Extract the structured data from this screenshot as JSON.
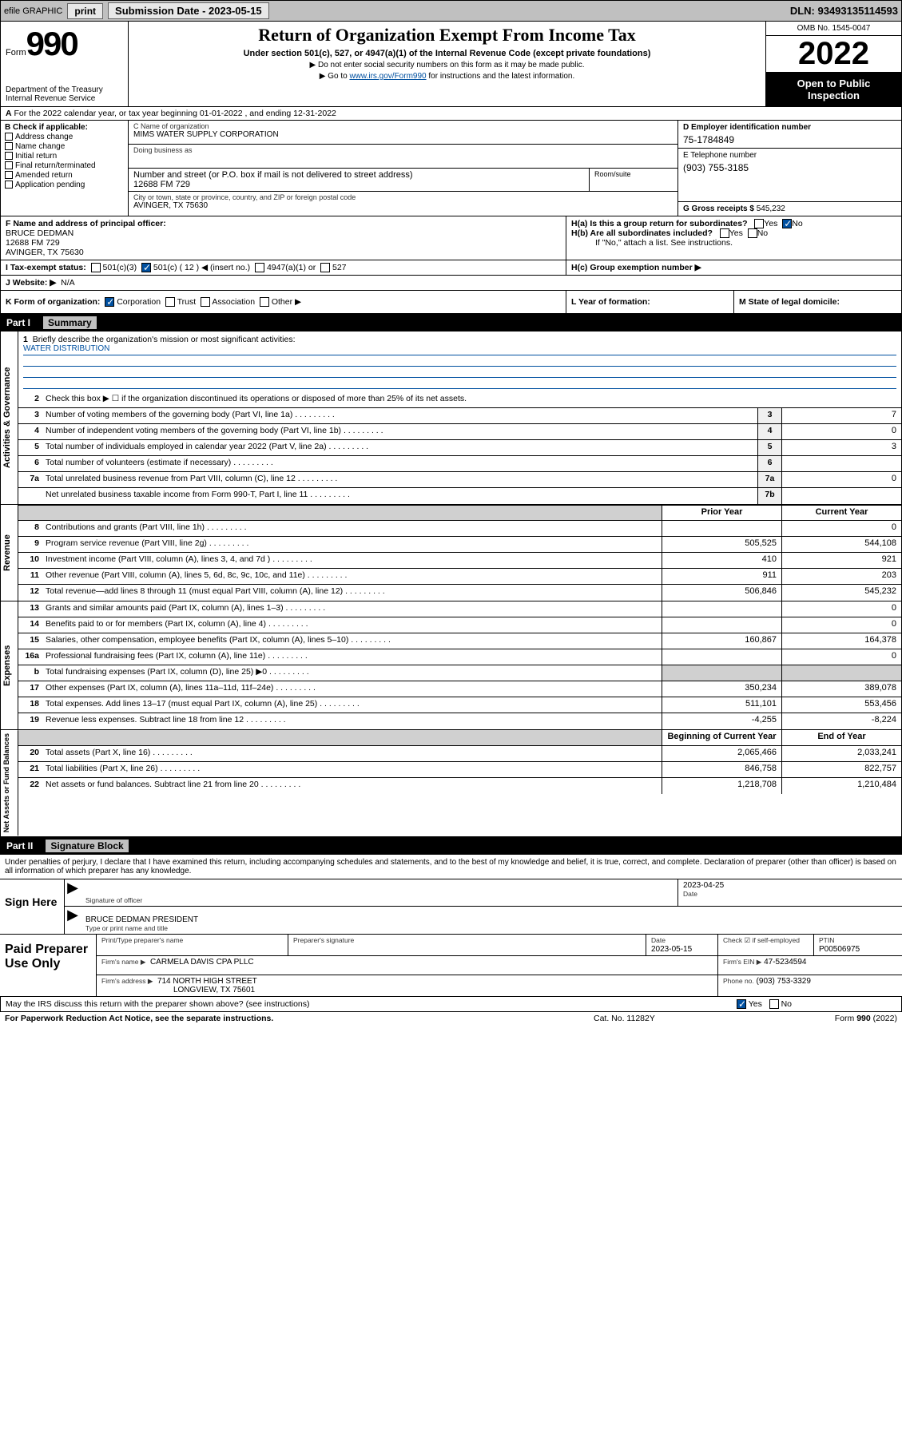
{
  "topbar": {
    "efile": "efile GRAPHIC",
    "print": "print",
    "sub_label": "Submission Date - 2023-05-15",
    "dln": "DLN: 93493135114593"
  },
  "header": {
    "form_word": "Form",
    "form_num": "990",
    "dept": "Department of the Treasury",
    "irs": "Internal Revenue Service",
    "title": "Return of Organization Exempt From Income Tax",
    "sub": "Under section 501(c), 527, or 4947(a)(1) of the Internal Revenue Code (except private foundations)",
    "note1": "▶ Do not enter social security numbers on this form as it may be made public.",
    "note2_a": "▶ Go to ",
    "note2_link": "www.irs.gov/Form990",
    "note2_b": " for instructions and the latest information.",
    "omb": "OMB No. 1545-0047",
    "year": "2022",
    "open1": "Open to Public",
    "open2": "Inspection"
  },
  "line_a": "For the 2022 calendar year, or tax year beginning 01-01-2022   , and ending 12-31-2022",
  "col_b": {
    "hdr": "B Check if applicable:",
    "o1": "Address change",
    "o2": "Name change",
    "o3": "Initial return",
    "o4": "Final return/terminated",
    "o5": "Amended return",
    "o6": "Application pending"
  },
  "col_c": {
    "name_lbl": "C Name of organization",
    "name": "MIMS WATER SUPPLY CORPORATION",
    "dba_lbl": "Doing business as",
    "addr_lbl": "Number and street (or P.O. box if mail is not delivered to street address)",
    "room_lbl": "Room/suite",
    "addr": "12688 FM 729",
    "city_lbl": "City or town, state or province, country, and ZIP or foreign postal code",
    "city": "AVINGER, TX  75630"
  },
  "col_d": {
    "ein_lbl": "D Employer identification number",
    "ein": "75-1784849",
    "phone_lbl": "E Telephone number",
    "phone": "(903) 755-3185",
    "gross_lbl": "G Gross receipts $",
    "gross": "545,232"
  },
  "row_f": {
    "lbl": "F  Name and address of principal officer:",
    "name": "BRUCE DEDMAN",
    "addr1": "12688 FM 729",
    "addr2": "AVINGER, TX  75630"
  },
  "row_h": {
    "ha": "H(a)  Is this a group return for subordinates?",
    "hb": "H(b)  Are all subordinates included?",
    "hb_note": "If \"No,\" attach a list. See instructions.",
    "hc": "H(c)  Group exemption number ▶",
    "yes": "Yes",
    "no": "No"
  },
  "row_i": {
    "lbl": "I   Tax-exempt status:",
    "o1": "501(c)(3)",
    "o2": "501(c) ( 12 ) ◀ (insert no.)",
    "o3": "4947(a)(1) or",
    "o4": "527"
  },
  "row_j": {
    "lbl": "J   Website: ▶",
    "val": "N/A"
  },
  "row_k": {
    "lbl": "K Form of organization:",
    "o1": "Corporation",
    "o2": "Trust",
    "o3": "Association",
    "o4": "Other ▶"
  },
  "row_l": "L Year of formation:",
  "row_m": "M State of legal domicile:",
  "part1": {
    "num": "Part I",
    "title": "Summary",
    "q1": "Briefly describe the organization's mission or most significant activities:",
    "mission": "WATER DISTRIBUTION",
    "q2": "Check this box ▶ ☐  if the organization discontinued its operations or disposed of more than 25% of its net assets.",
    "labels": {
      "gov": "Activities & Governance",
      "rev": "Revenue",
      "exp": "Expenses",
      "net": "Net Assets or Fund Balances"
    },
    "hdr_prior": "Prior Year",
    "hdr_curr": "Current Year",
    "hdr_begin": "Beginning of Current Year",
    "hdr_end": "End of Year",
    "rows_gov": [
      {
        "n": "3",
        "t": "Number of voting members of the governing body (Part VI, line 1a)",
        "c1": "3",
        "v": "7"
      },
      {
        "n": "4",
        "t": "Number of independent voting members of the governing body (Part VI, line 1b)",
        "c1": "4",
        "v": "0"
      },
      {
        "n": "5",
        "t": "Total number of individuals employed in calendar year 2022 (Part V, line 2a)",
        "c1": "5",
        "v": "3"
      },
      {
        "n": "6",
        "t": "Total number of volunteers (estimate if necessary)",
        "c1": "6",
        "v": ""
      },
      {
        "n": "7a",
        "t": "Total unrelated business revenue from Part VIII, column (C), line 12",
        "c1": "7a",
        "v": "0"
      },
      {
        "n": "",
        "t": "Net unrelated business taxable income from Form 990-T, Part I, line 11",
        "c1": "7b",
        "v": ""
      }
    ],
    "rows_rev": [
      {
        "n": "8",
        "t": "Contributions and grants (Part VIII, line 1h)",
        "p": "",
        "c": "0"
      },
      {
        "n": "9",
        "t": "Program service revenue (Part VIII, line 2g)",
        "p": "505,525",
        "c": "544,108"
      },
      {
        "n": "10",
        "t": "Investment income (Part VIII, column (A), lines 3, 4, and 7d )",
        "p": "410",
        "c": "921"
      },
      {
        "n": "11",
        "t": "Other revenue (Part VIII, column (A), lines 5, 6d, 8c, 9c, 10c, and 11e)",
        "p": "911",
        "c": "203"
      },
      {
        "n": "12",
        "t": "Total revenue—add lines 8 through 11 (must equal Part VIII, column (A), line 12)",
        "p": "506,846",
        "c": "545,232"
      }
    ],
    "rows_exp": [
      {
        "n": "13",
        "t": "Grants and similar amounts paid (Part IX, column (A), lines 1–3)",
        "p": "",
        "c": "0"
      },
      {
        "n": "14",
        "t": "Benefits paid to or for members (Part IX, column (A), line 4)",
        "p": "",
        "c": "0"
      },
      {
        "n": "15",
        "t": "Salaries, other compensation, employee benefits (Part IX, column (A), lines 5–10)",
        "p": "160,867",
        "c": "164,378"
      },
      {
        "n": "16a",
        "t": "Professional fundraising fees (Part IX, column (A), line 11e)",
        "p": "",
        "c": "0"
      },
      {
        "n": "b",
        "t": "Total fundraising expenses (Part IX, column (D), line 25) ▶0",
        "p": "GRAY",
        "c": "GRAY"
      },
      {
        "n": "17",
        "t": "Other expenses (Part IX, column (A), lines 11a–11d, 11f–24e)",
        "p": "350,234",
        "c": "389,078"
      },
      {
        "n": "18",
        "t": "Total expenses. Add lines 13–17 (must equal Part IX, column (A), line 25)",
        "p": "511,101",
        "c": "553,456"
      },
      {
        "n": "19",
        "t": "Revenue less expenses. Subtract line 18 from line 12",
        "p": "-4,255",
        "c": "-8,224"
      }
    ],
    "rows_net": [
      {
        "n": "20",
        "t": "Total assets (Part X, line 16)",
        "p": "2,065,466",
        "c": "2,033,241"
      },
      {
        "n": "21",
        "t": "Total liabilities (Part X, line 26)",
        "p": "846,758",
        "c": "822,757"
      },
      {
        "n": "22",
        "t": "Net assets or fund balances. Subtract line 21 from line 20",
        "p": "1,218,708",
        "c": "1,210,484"
      }
    ]
  },
  "part2": {
    "num": "Part II",
    "title": "Signature Block",
    "intro": "Under penalties of perjury, I declare that I have examined this return, including accompanying schedules and statements, and to the best of my knowledge and belief, it is true, correct, and complete. Declaration of preparer (other than officer) is based on all information of which preparer has any knowledge.",
    "sign_here": "Sign Here",
    "sig_officer": "Signature of officer",
    "date_lbl": "Date",
    "date": "2023-04-25",
    "officer_name": "BRUCE DEDMAN  PRESIDENT",
    "officer_name_lbl": "Type or print name and title",
    "paid": "Paid Preparer Use Only",
    "prep_name_lbl": "Print/Type preparer's name",
    "prep_sig_lbl": "Preparer's signature",
    "prep_date_lbl": "Date",
    "prep_date": "2023-05-15",
    "check_if": "Check ☑ if self-employed",
    "ptin_lbl": "PTIN",
    "ptin": "P00506975",
    "firm_name_lbl": "Firm's name    ▶",
    "firm_name": "CARMELA DAVIS CPA PLLC",
    "firm_ein_lbl": "Firm's EIN ▶",
    "firm_ein": "47-5234594",
    "firm_addr_lbl": "Firm's address ▶",
    "firm_addr1": "714 NORTH HIGH STREET",
    "firm_addr2": "LONGVIEW, TX  75601",
    "firm_phone_lbl": "Phone no.",
    "firm_phone": "(903) 753-3329",
    "may_irs": "May the IRS discuss this return with the preparer shown above? (see instructions)",
    "yes": "Yes",
    "no": "No"
  },
  "footer": {
    "l": "For Paperwork Reduction Act Notice, see the separate instructions.",
    "m": "Cat. No. 11282Y",
    "r": "Form 990 (2022)"
  }
}
